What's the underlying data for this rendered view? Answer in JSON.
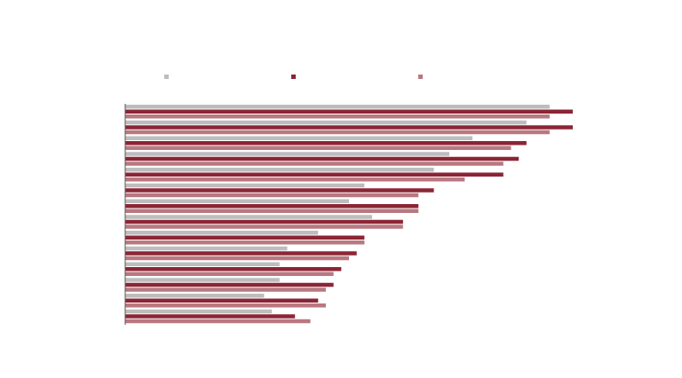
{
  "chart_data": {
    "type": "bar",
    "orientation": "horizontal",
    "title": "",
    "xlabel": "",
    "ylabel": "",
    "grid": false,
    "legend_position": "top",
    "xlim": [
      0,
      58
    ],
    "categories": [
      "",
      "",
      "",
      "",
      "",
      "",
      "",
      "",
      "",
      "",
      "",
      "",
      "",
      ""
    ],
    "series": [
      {
        "name": "",
        "color": "#bdbdbd",
        "values": [
          55,
          52,
          45,
          42,
          40,
          31,
          29,
          32,
          25,
          21,
          20,
          20,
          18,
          19
        ]
      },
      {
        "name": "",
        "color": "#8b2535",
        "values": [
          58,
          58,
          52,
          51,
          49,
          40,
          38,
          36,
          31,
          30,
          28,
          27,
          25,
          22
        ]
      },
      {
        "name": "",
        "color": "#b97880",
        "values": [
          55,
          55,
          50,
          49,
          44,
          38,
          38,
          36,
          31,
          29,
          27,
          26,
          26,
          24
        ]
      }
    ]
  }
}
